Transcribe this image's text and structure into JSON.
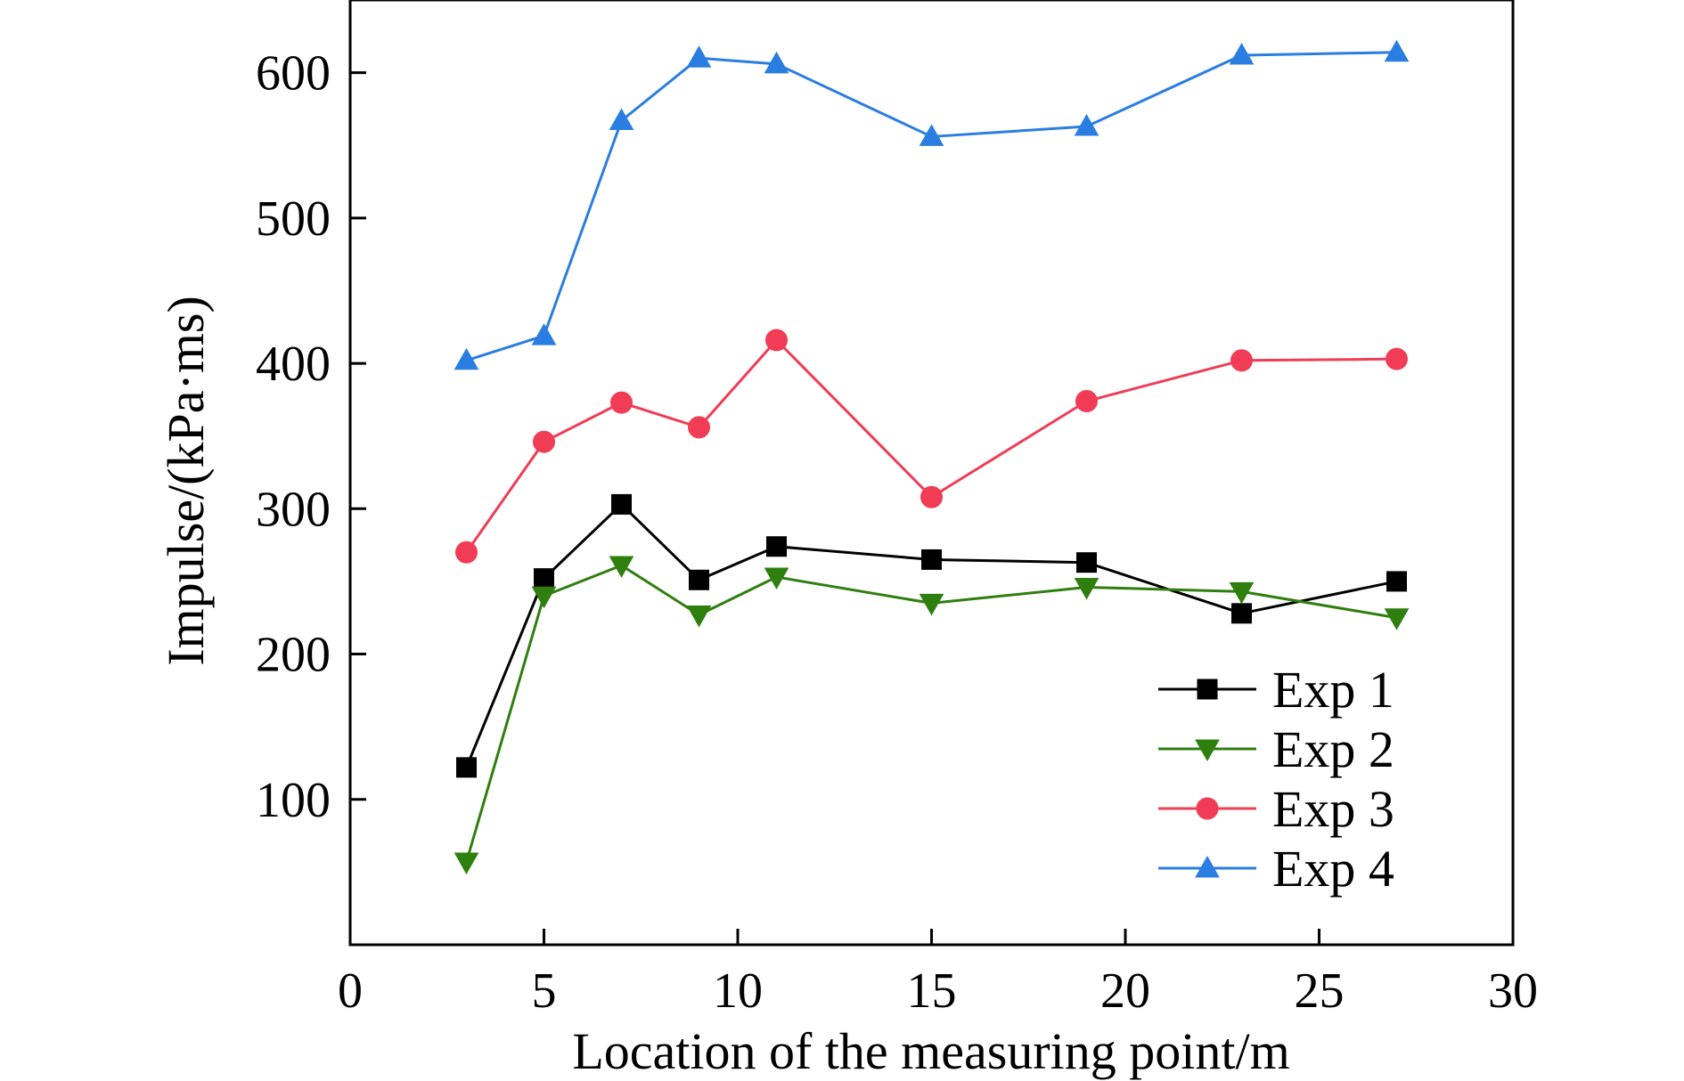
{
  "chart_data": {
    "type": "line",
    "xlabel": "Location of the measuring point/m",
    "ylabel": "Impulse/(kPa·ms)",
    "xlim": [
      0,
      30
    ],
    "ylim": [
      0,
      650
    ],
    "xticks": [
      0,
      5,
      10,
      15,
      20,
      25,
      30
    ],
    "xtick_labels": [
      "0",
      "5",
      "10",
      "15",
      "20",
      "25",
      "30"
    ],
    "yticks": [
      100,
      200,
      300,
      400,
      500,
      600
    ],
    "ytick_labels": [
      "100",
      "200",
      "300",
      "400",
      "500",
      "600"
    ],
    "grid": false,
    "legend_position": "lower-right",
    "x": [
      3,
      5,
      7,
      9,
      11,
      15,
      19,
      23,
      27
    ],
    "series": [
      {
        "name": "Exp 1",
        "color": "#000000",
        "marker": "square",
        "values": [
          122,
          252,
          303,
          251,
          274,
          265,
          263,
          228,
          250
        ]
      },
      {
        "name": "Exp 2",
        "color": "#2f7f0f",
        "marker": "triangle-down",
        "values": [
          57,
          240,
          261,
          227,
          253,
          235,
          246,
          243,
          225
        ]
      },
      {
        "name": "Exp 3",
        "color": "#f03c55",
        "marker": "circle",
        "values": [
          270,
          346,
          373,
          356,
          416,
          308,
          374,
          402,
          403
        ]
      },
      {
        "name": "Exp 4",
        "color": "#2a7de1",
        "marker": "triangle-up",
        "values": [
          402,
          419,
          567,
          610,
          606,
          556,
          563,
          612,
          614
        ]
      }
    ]
  }
}
